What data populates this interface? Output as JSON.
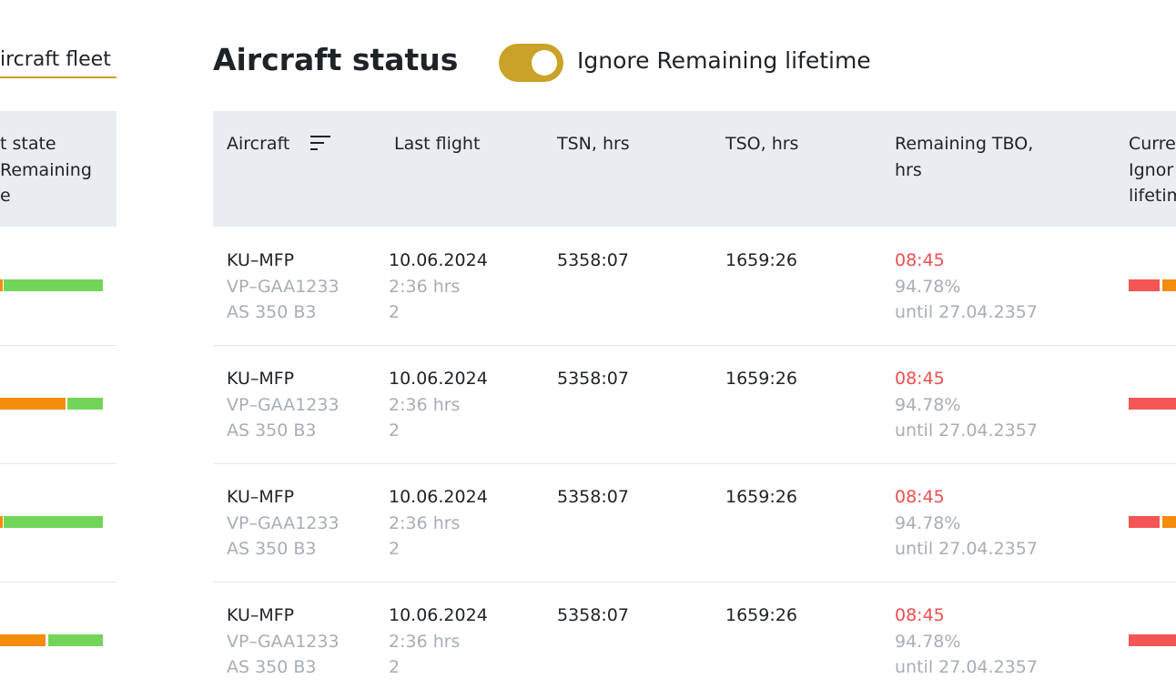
{
  "tab": "ircraft fleet",
  "left_header": [
    "t state",
    "Remaining",
    "e"
  ],
  "title": "Aircraft status",
  "toggle_label": "Ignore Remaining lifetime",
  "table": {
    "headers": [
      "Aircraft",
      "Last flight",
      "TSN, hrs",
      "TSO, hrs",
      "Remaining TBO, hrs"
    ],
    "cut_header": [
      "Curre",
      "Ignor",
      "lifetim"
    ],
    "rows": [
      {
        "aircraft": [
          "KU–MFP",
          "VP–GAA1233",
          "AS 350 B3"
        ],
        "last_flight": [
          "10.06.2024",
          "2:36 hrs",
          "2"
        ],
        "tsn": "5358:07",
        "tso": "1659:26",
        "remaining": [
          "08:45",
          "94.78%",
          "until 27.04.2357"
        ]
      },
      {
        "aircraft": [
          "KU–MFP",
          "VP–GAA1233",
          "AS 350 B3"
        ],
        "last_flight": [
          "10.06.2024",
          "2:36 hrs",
          "2"
        ],
        "tsn": "5358:07",
        "tso": "1659:26",
        "remaining": [
          "08:45",
          "94.78%",
          "until 27.04.2357"
        ]
      },
      {
        "aircraft": [
          "KU–MFP",
          "VP–GAA1233",
          "AS 350 B3"
        ],
        "last_flight": [
          "10.06.2024",
          "2:36 hrs",
          "2"
        ],
        "tsn": "5358:07",
        "tso": "1659:26",
        "remaining": [
          "08:45",
          "94.78%",
          "until 27.04.2357"
        ]
      },
      {
        "aircraft": [
          "KU–MFP",
          "VP–GAA1233",
          "AS 350 B3"
        ],
        "last_flight": [
          "10.06.2024",
          "2:36 hrs",
          "2"
        ],
        "tsn": "5358:07",
        "tso": "1659:26",
        "remaining": [
          "08:45",
          "94.78%",
          "until 27.04.2357"
        ]
      }
    ]
  }
}
